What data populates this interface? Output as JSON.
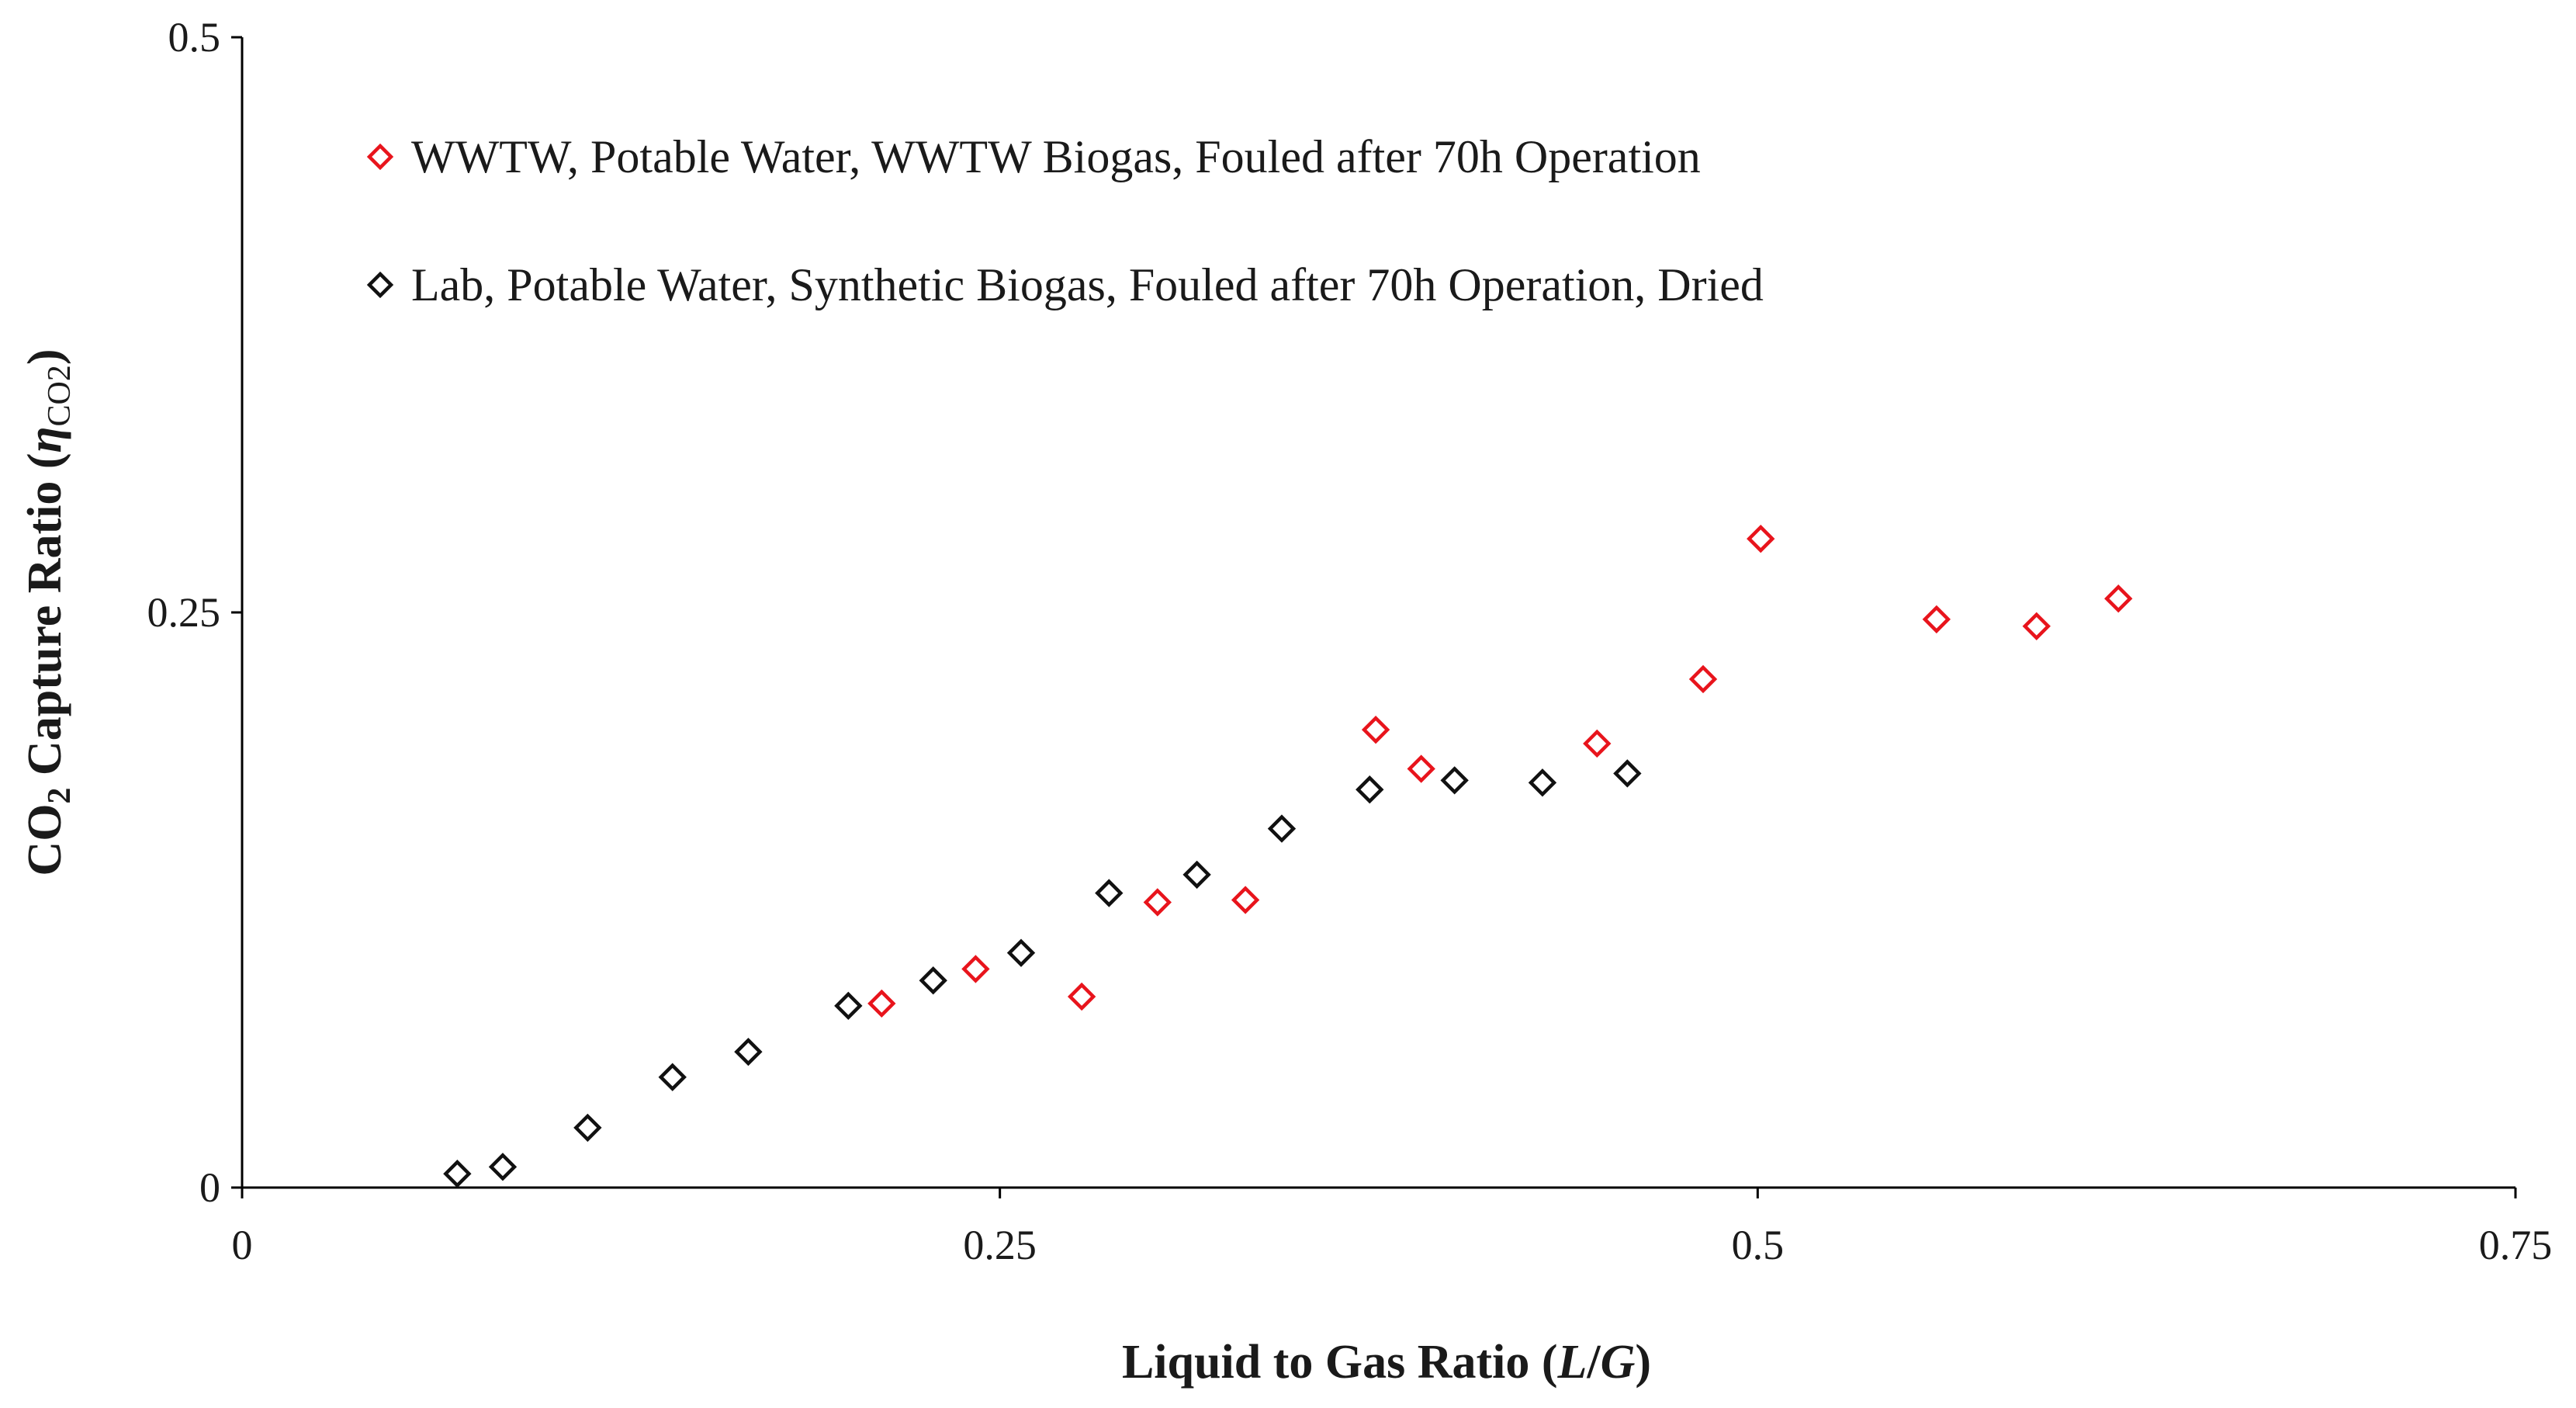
{
  "chart_data": {
    "type": "scatter",
    "title": "",
    "xlabel": {
      "main": "Liquid to Gas Ratio (",
      "var1": "L",
      "sep": "/",
      "var2": "G",
      "close": ")"
    },
    "ylabel": {
      "main": "CO",
      "sub": "2",
      "rest": " Capture Ratio (",
      "eta": "η",
      "eta_sub": "CO2",
      "close": ")"
    },
    "xlim": [
      0,
      0.75
    ],
    "ylim": [
      0,
      0.5
    ],
    "xticks": [
      {
        "value": 0,
        "label": "0"
      },
      {
        "value": 0.25,
        "label": "0.25"
      },
      {
        "value": 0.5,
        "label": "0.5"
      },
      {
        "value": 0.75,
        "label": "0.75"
      }
    ],
    "yticks": [
      {
        "value": 0,
        "label": "0"
      },
      {
        "value": 0.25,
        "label": "0.25"
      },
      {
        "value": 0.5,
        "label": "0.5"
      }
    ],
    "grid": false,
    "legend_position": "top-left",
    "series": [
      {
        "name": "WWTW, Potable Water, WWTW Biogas, Fouled after 70h Operation",
        "color": "#e8141c",
        "marker": "diamond-open",
        "points": [
          [
            0.211,
            0.08
          ],
          [
            0.242,
            0.095
          ],
          [
            0.277,
            0.083
          ],
          [
            0.302,
            0.124
          ],
          [
            0.331,
            0.125
          ],
          [
            0.374,
            0.199
          ],
          [
            0.389,
            0.182
          ],
          [
            0.447,
            0.193
          ],
          [
            0.482,
            0.221
          ],
          [
            0.501,
            0.282
          ],
          [
            0.559,
            0.247
          ],
          [
            0.592,
            0.244
          ],
          [
            0.619,
            0.256
          ]
        ]
      },
      {
        "name": "Lab, Potable Water, Synthetic Biogas, Fouled after 70h Operation, Dried",
        "color": "#111111",
        "marker": "diamond-open",
        "points": [
          [
            0.071,
            0.006
          ],
          [
            0.086,
            0.009
          ],
          [
            0.114,
            0.026
          ],
          [
            0.142,
            0.048
          ],
          [
            0.167,
            0.059
          ],
          [
            0.2,
            0.079
          ],
          [
            0.228,
            0.09
          ],
          [
            0.257,
            0.102
          ],
          [
            0.286,
            0.128
          ],
          [
            0.315,
            0.136
          ],
          [
            0.343,
            0.156
          ],
          [
            0.372,
            0.173
          ],
          [
            0.4,
            0.177
          ],
          [
            0.429,
            0.176
          ],
          [
            0.457,
            0.18
          ]
        ]
      }
    ]
  }
}
